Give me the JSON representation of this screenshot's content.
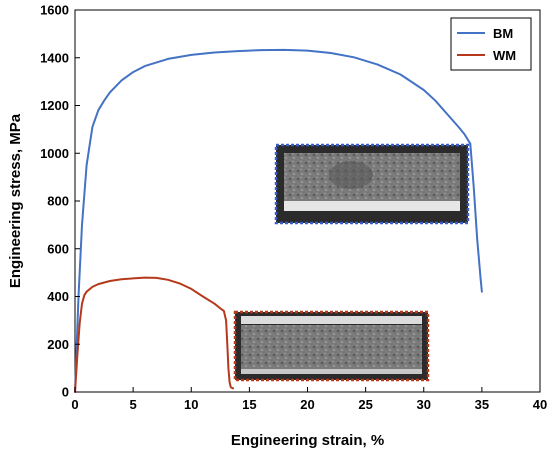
{
  "chart_data": {
    "type": "line",
    "xlabel": "Engineering strain, %",
    "ylabel": "Engineering stress, MPa",
    "xlim": [
      0,
      40
    ],
    "ylim": [
      0,
      1600
    ],
    "xticks": [
      0,
      5,
      10,
      15,
      20,
      25,
      30,
      35,
      40
    ],
    "yticks": [
      0,
      200,
      400,
      600,
      800,
      1000,
      1200,
      1400,
      1600
    ],
    "grid": false,
    "legend_position": "top-right",
    "series": [
      {
        "name": "BM",
        "color": "#4472c4",
        "x": [
          0,
          0.3,
          0.6,
          1.0,
          1.5,
          2.0,
          2.5,
          3,
          4,
          5,
          6,
          8,
          10,
          12,
          14,
          16,
          18,
          20,
          22,
          24,
          26,
          28,
          30,
          31,
          32,
          33,
          33.5,
          34,
          34.3,
          34.6,
          34.9,
          35.0
        ],
        "y": [
          0,
          400,
          700,
          950,
          1110,
          1180,
          1220,
          1255,
          1305,
          1340,
          1365,
          1395,
          1412,
          1422,
          1428,
          1432,
          1433,
          1430,
          1420,
          1402,
          1372,
          1330,
          1265,
          1220,
          1165,
          1110,
          1080,
          1040,
          860,
          640,
          470,
          420
        ]
      },
      {
        "name": "WM",
        "color": "#b5391b",
        "x": [
          0,
          0.2,
          0.4,
          0.6,
          0.8,
          1,
          1.5,
          2,
          3,
          4,
          5,
          6,
          7,
          8,
          9,
          10,
          11,
          12,
          12.5,
          12.8,
          13.0,
          13.1,
          13.2,
          13.3,
          13.4,
          13.6
        ],
        "y": [
          0,
          150,
          290,
          370,
          405,
          420,
          440,
          452,
          465,
          472,
          476,
          479,
          478,
          470,
          455,
          432,
          400,
          370,
          350,
          340,
          300,
          200,
          100,
          40,
          20,
          15
        ]
      }
    ]
  }
}
